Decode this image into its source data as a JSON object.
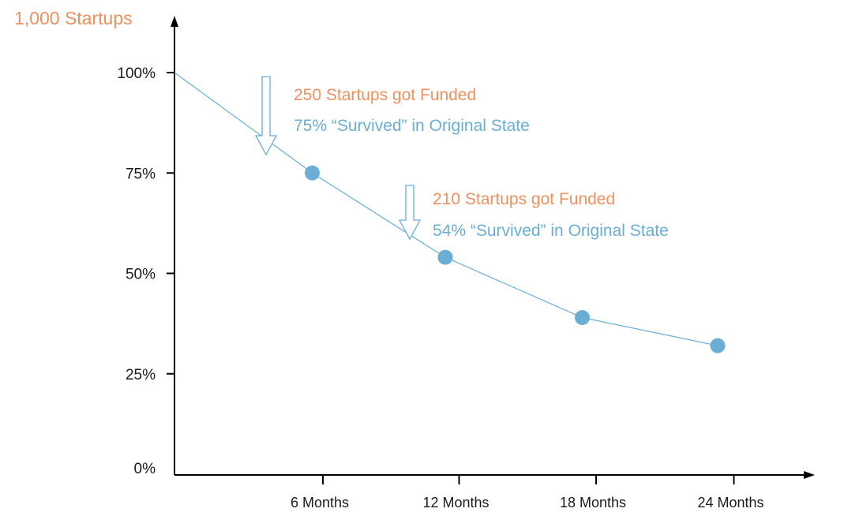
{
  "chart_data": {
    "type": "line",
    "title": "1,000 Startups",
    "xlabel": "",
    "ylabel": "",
    "categories": [
      "6 Months",
      "12 Months",
      "18 Months",
      "24 Months"
    ],
    "series": [
      {
        "x": [
          0,
          6,
          12,
          18,
          24
        ],
        "values": [
          100,
          75,
          54,
          39,
          32
        ]
      }
    ],
    "ylim": [
      0,
      100
    ],
    "y_ticks": [
      "0%",
      "25%",
      "50%",
      "75%",
      "100%"
    ],
    "y_tick_values": [
      0,
      25,
      50,
      75,
      100
    ],
    "grid": false,
    "annotations": [
      {
        "at_x": 6,
        "funded": "250 Startups got Funded",
        "survived": "75% “Survived” in Original State"
      },
      {
        "at_x": 12,
        "funded": "210 Startups got Funded",
        "survived": "54% “Survived” in Original State"
      }
    ],
    "colors": {
      "line": "#6aaed6",
      "point": "#6aaed6",
      "title": "#f0915f",
      "funded_text": "#f0915f",
      "survived_text": "#6aaed6",
      "axis": "#000000",
      "arrow": "#6aaed6"
    }
  }
}
